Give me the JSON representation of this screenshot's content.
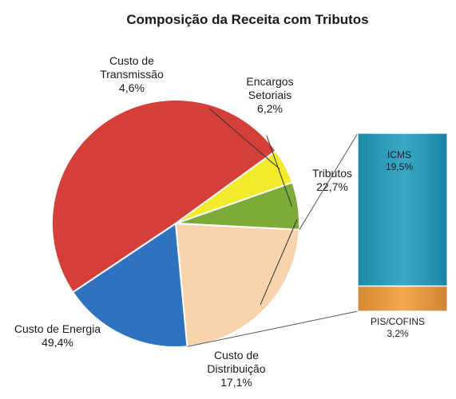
{
  "chart_data": {
    "type": "pie",
    "title": "Composição da Receita com Tributos",
    "slices": [
      {
        "label_lines": [
          "Encargos",
          "Setoriais"
        ],
        "value_text": "6,2%",
        "value": 6.2,
        "color": "#7dab3a"
      },
      {
        "label_lines": [
          "Tributos"
        ],
        "value_text": "22,7%",
        "value": 22.7,
        "color": "#f8d3ab"
      },
      {
        "label_lines": [
          "Custo de",
          "Distribuição"
        ],
        "value_text": "17,1%",
        "value": 17.1,
        "color": "#2e72c0"
      },
      {
        "label_lines": [
          "Custo de Energia"
        ],
        "value_text": "49,4%",
        "value": 49.4,
        "color": "#d43f3a"
      },
      {
        "label_lines": [
          "Custo de",
          "Transmissão"
        ],
        "value_text": "4,6%",
        "value": 4.6,
        "color": "#f2ea2a"
      }
    ],
    "breakdown": {
      "of": "Tributos",
      "type": "stacked-bar",
      "segments": [
        {
          "label": "ICMS",
          "value_text": "19,5%",
          "value": 19.5,
          "color": "#1f9bbf"
        },
        {
          "label": "PIS/COFINS",
          "value_text": "3,2%",
          "value": 3.2,
          "color": "#f29b38"
        }
      ]
    }
  }
}
